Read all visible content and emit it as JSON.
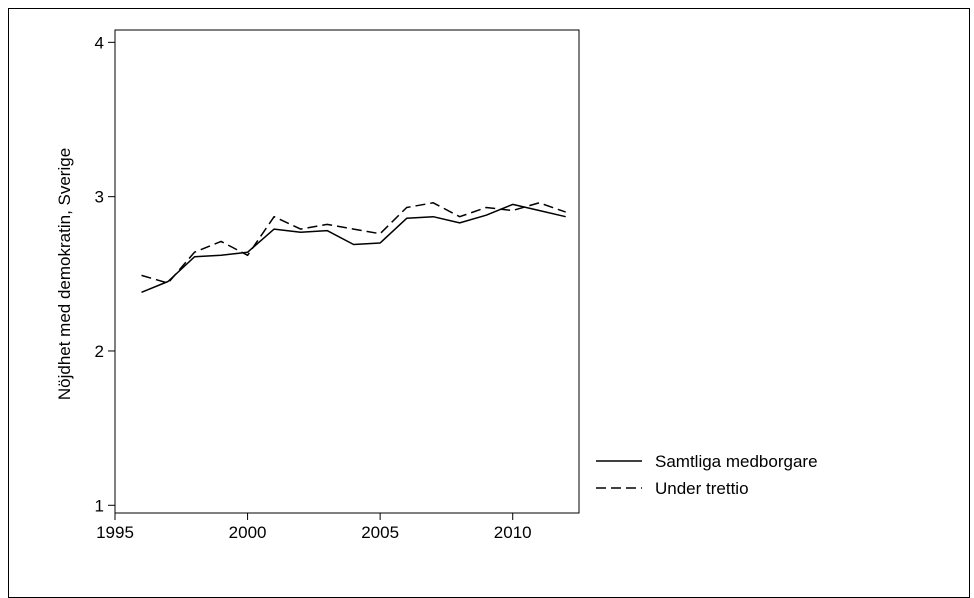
{
  "chart_data": {
    "type": "line",
    "ylabel": "Nöjdhet med demokratin, Sverige",
    "xlabel": "",
    "xlim": [
      1995,
      2012.5
    ],
    "ylim": [
      0.95,
      4.08
    ],
    "x_ticks": [
      1995,
      2000,
      2005,
      2010
    ],
    "y_ticks": [
      1,
      2,
      3,
      4
    ],
    "x_tick_labels": [
      "1995",
      "2000",
      "2005",
      "2010"
    ],
    "y_tick_labels": [
      "1",
      "2",
      "3",
      "4"
    ],
    "grid": false,
    "legend_position": "right",
    "series": [
      {
        "name": "Samtliga medborgare",
        "style": "solid",
        "x": [
          1996,
          1997,
          1998,
          1999,
          2000,
          2001,
          2002,
          2003,
          2004,
          2005,
          2006,
          2007,
          2008,
          2009,
          2010,
          2011,
          2012
        ],
        "y": [
          2.38,
          2.45,
          2.61,
          2.62,
          2.64,
          2.79,
          2.77,
          2.78,
          2.69,
          2.7,
          2.86,
          2.87,
          2.83,
          2.88,
          2.95,
          2.91,
          2.87
        ]
      },
      {
        "name": "Under trettio",
        "style": "dashed",
        "x": [
          1996,
          1997,
          1998,
          1999,
          2000,
          2001,
          2002,
          2003,
          2004,
          2005,
          2006,
          2007,
          2008,
          2009,
          2010,
          2011,
          2012
        ],
        "y": [
          2.49,
          2.44,
          2.64,
          2.71,
          2.62,
          2.87,
          2.79,
          2.82,
          2.79,
          2.76,
          2.93,
          2.96,
          2.87,
          2.93,
          2.91,
          2.96,
          2.9
        ]
      }
    ]
  }
}
